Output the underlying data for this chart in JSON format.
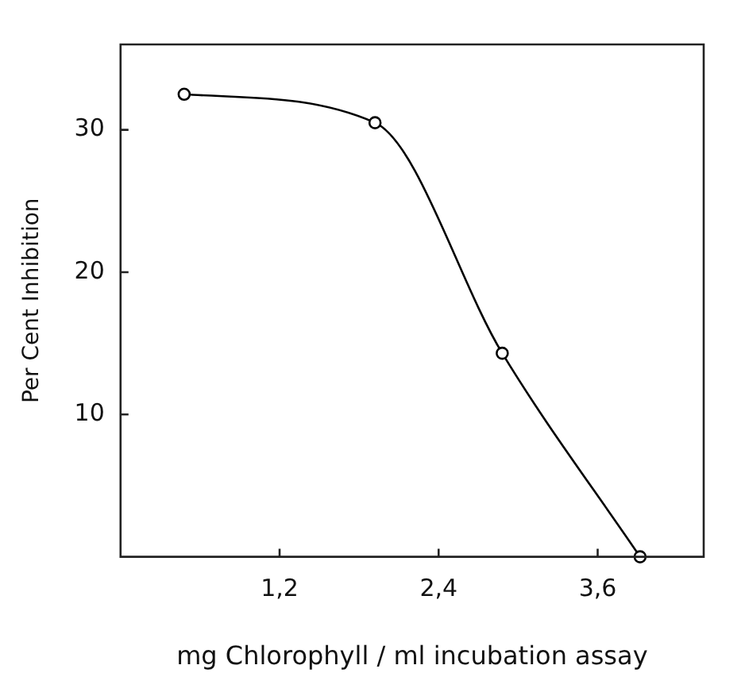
{
  "chart_data": {
    "type": "line",
    "xlabel": "mg Chlorophyll / ml incubation assay",
    "ylabel": "Per Cent Inhibition",
    "x": [
      0.48,
      1.92,
      2.88,
      3.92
    ],
    "series": [
      {
        "color": "#000000",
        "values": [
          32.5,
          30.5,
          14.3,
          0
        ]
      }
    ],
    "xlim": [
      0,
      4.4
    ],
    "xticks": [
      {
        "value": 1.2,
        "label": "1,2"
      },
      {
        "value": 2.4,
        "label": "2,4"
      },
      {
        "value": 3.6,
        "label": "3,6"
      }
    ],
    "ylim": [
      0,
      36
    ],
    "yticks": [
      10,
      20,
      30
    ],
    "grid": false,
    "legend": false,
    "marker": "circle",
    "line_style": "solid"
  }
}
